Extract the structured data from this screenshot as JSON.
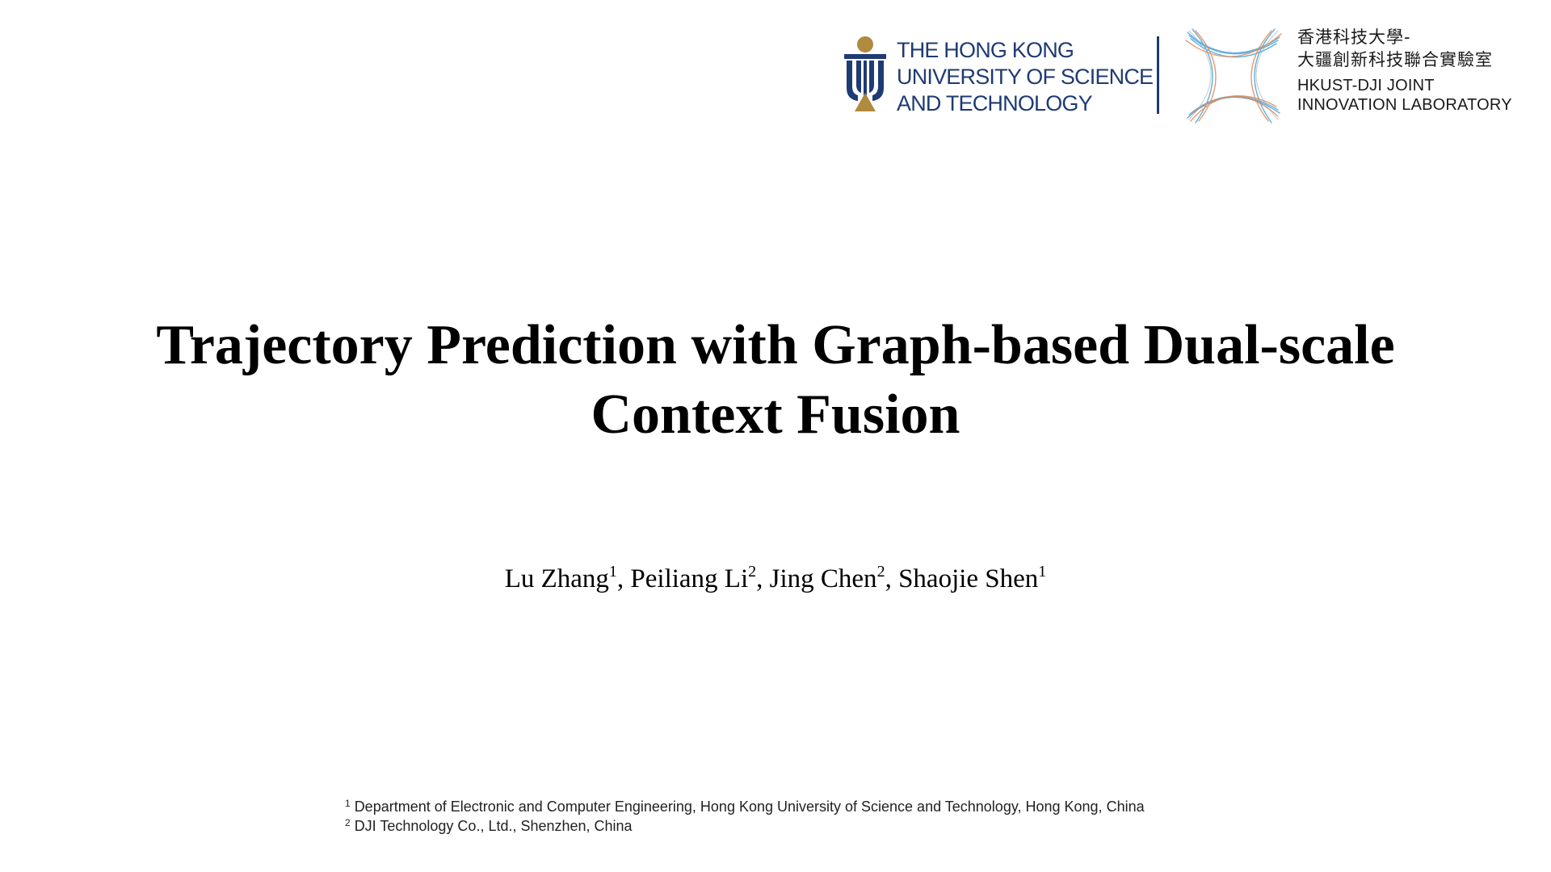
{
  "logos": {
    "hkust": {
      "lines": [
        "THE HONG KONG",
        "UNIVERSITY OF SCIENCE",
        "AND TECHNOLOGY"
      ]
    },
    "dji_lab": {
      "cn_line1": "香港科技大學-",
      "cn_line2": "大疆創新科技聯合實驗室",
      "en_line1": "HKUST-DJI JOINT",
      "en_line2": "INNOVATION LABORATORY"
    }
  },
  "title": {
    "line1": "Trajectory Prediction with Graph-based Dual-scale",
    "line2": "Context Fusion"
  },
  "authors": [
    {
      "name": "Lu Zhang",
      "affiliation": "1"
    },
    {
      "name": "Peiliang Li",
      "affiliation": "2"
    },
    {
      "name": "Jing Chen",
      "affiliation": "2"
    },
    {
      "name": "Shaojie Shen",
      "affiliation": "1"
    }
  ],
  "footnotes": [
    {
      "mark": "1",
      "text": "Department of Electronic and Computer Engineering, Hong Kong University of Science and Technology, Hong Kong, China"
    },
    {
      "mark": "2",
      "text": "DJI Technology Co., Ltd., Shenzhen, China"
    }
  ],
  "colors": {
    "hkust_navy": "#1f3b73",
    "hkust_gold": "#b08a3e",
    "dji_blue": "#4aa3d8",
    "dji_orange": "#e08a5a"
  }
}
